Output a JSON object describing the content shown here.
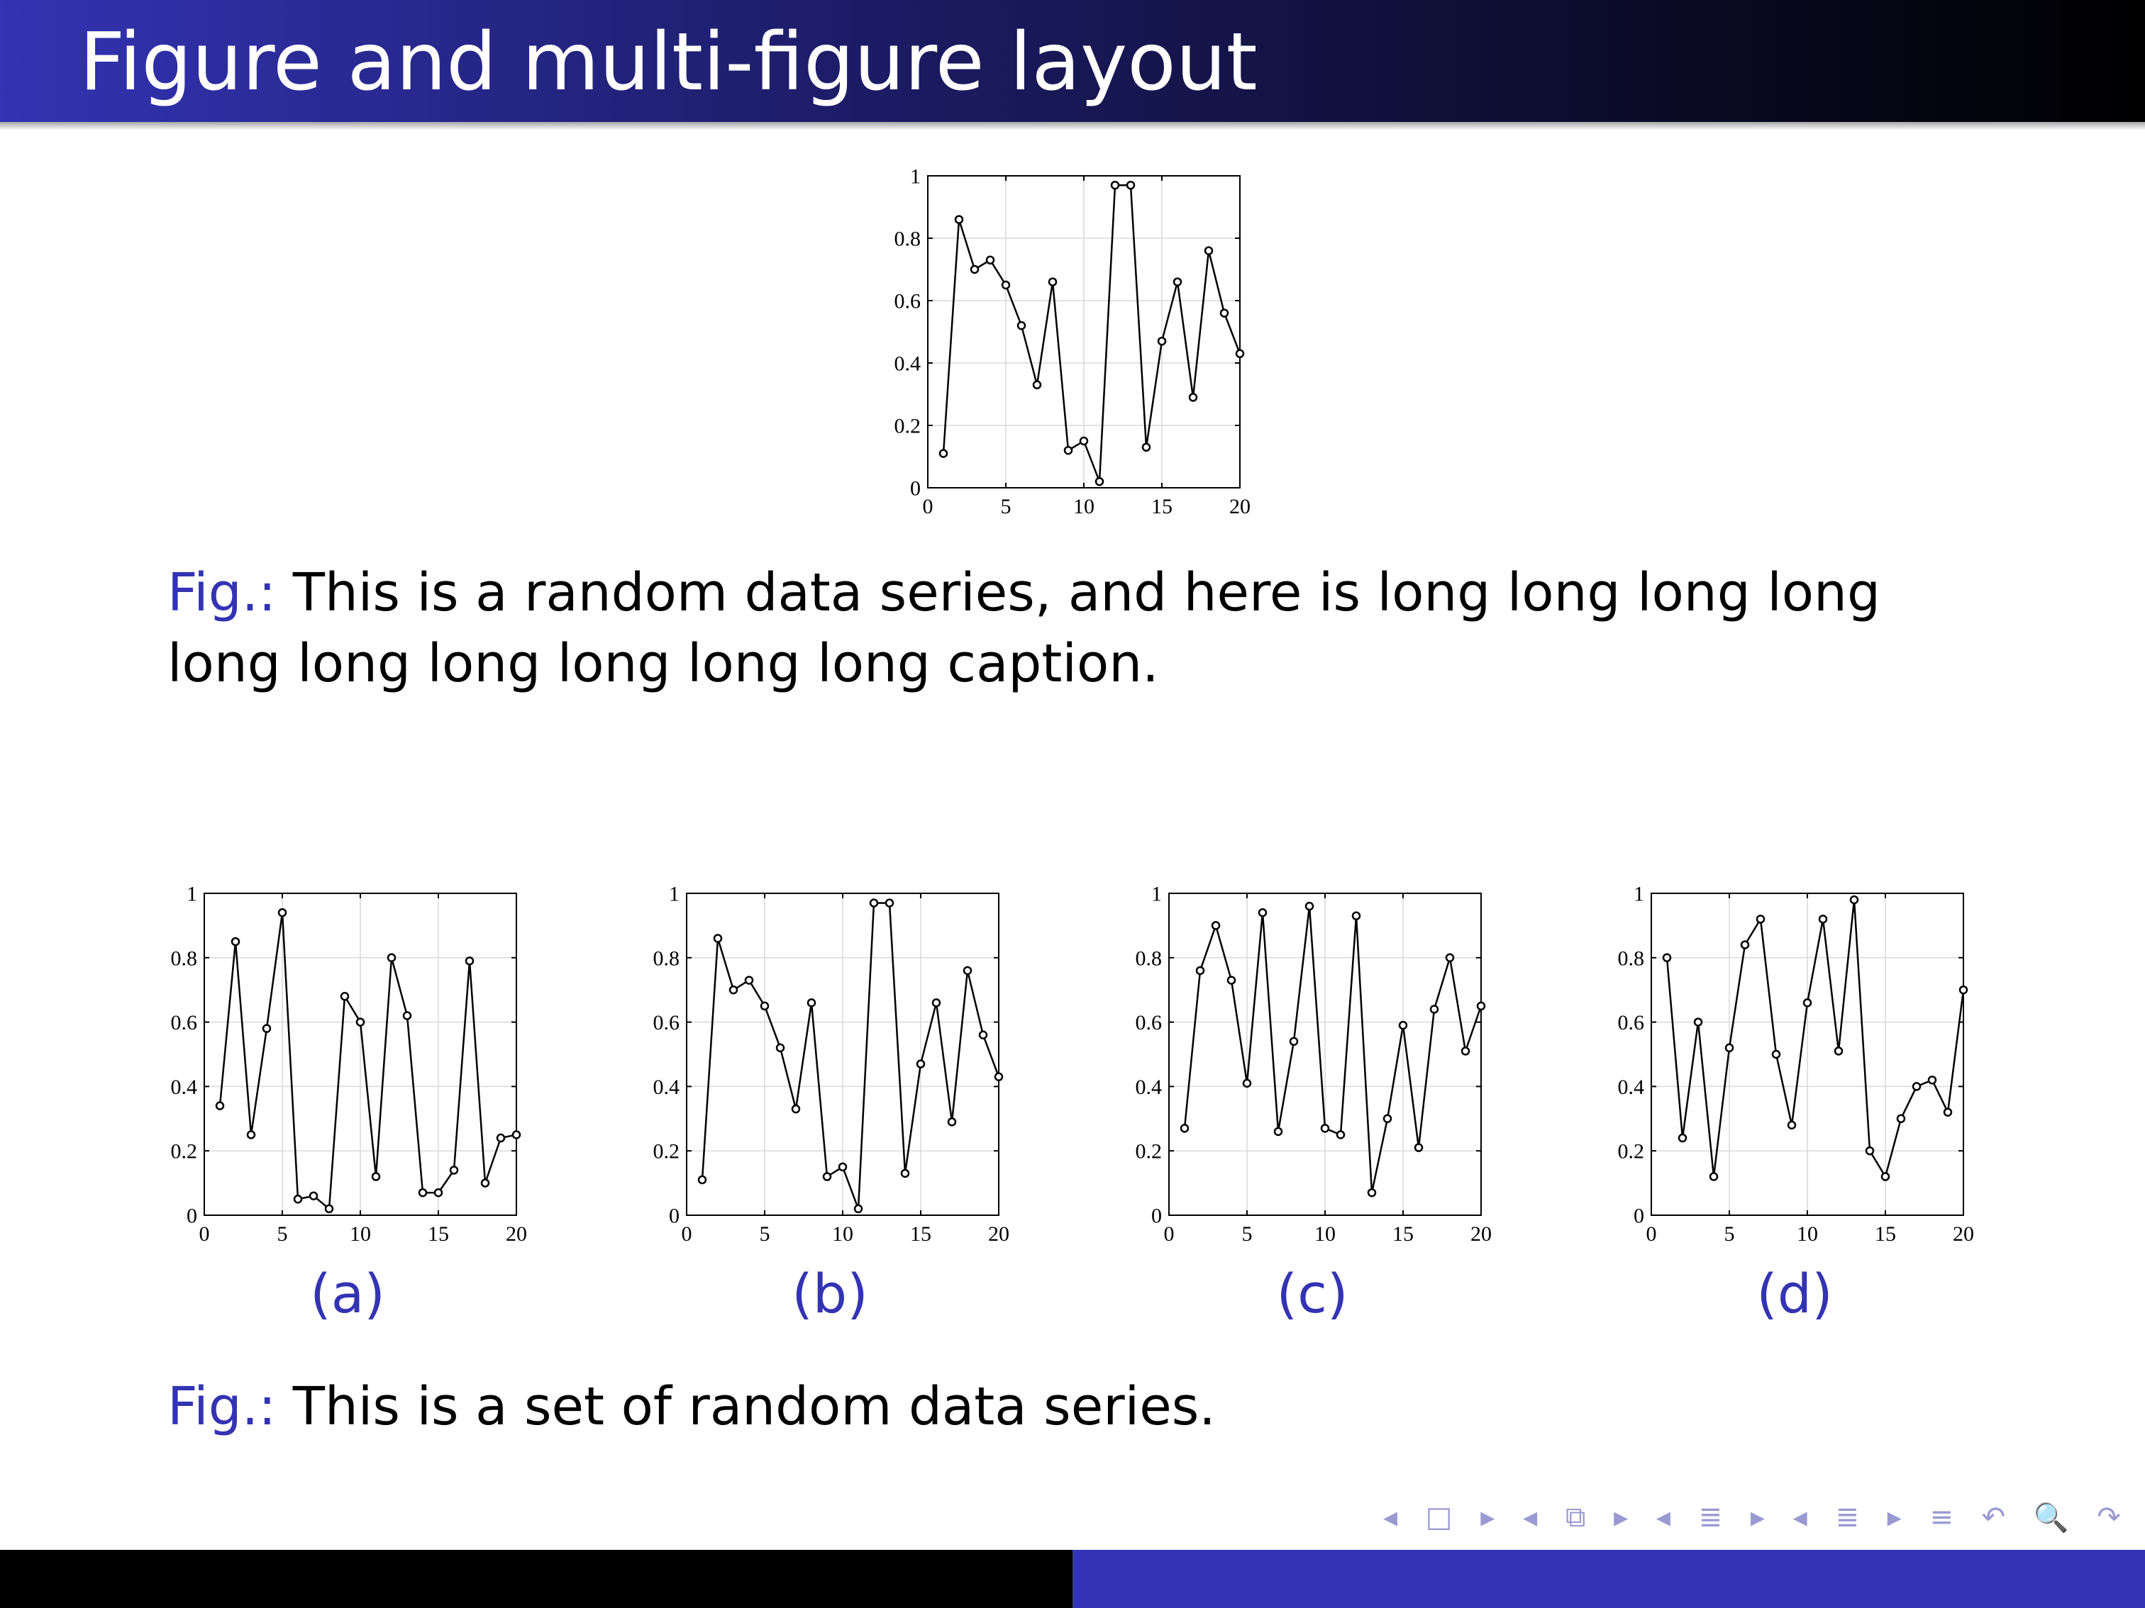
{
  "frame": {
    "title": "Figure and multi-figure layout"
  },
  "captions": [
    {
      "label": "Fig.:",
      "text": "This is a random data series, and here is long long long long long long long long long long caption."
    },
    {
      "label": "Fig.:",
      "text": "This is a set of random data series."
    }
  ],
  "subfigure_labels": [
    "(a)",
    "(b)",
    "(c)",
    "(d)"
  ],
  "navigation": {
    "icons": [
      "arrow-left-icon",
      "frame-icon",
      "arrow-right-icon",
      "arrow-left-icon",
      "subsection-icon",
      "arrow-right-icon",
      "arrow-left-icon",
      "section-icon",
      "arrow-right-icon",
      "arrow-left-icon",
      "document-icon",
      "arrow-right-icon",
      "align-icon",
      "undo-icon",
      "search-icon",
      "redo-icon"
    ],
    "glyphs": [
      "◂",
      "□",
      "▸",
      "◂",
      "⧉",
      "▸",
      "◂",
      "≣",
      "▸",
      "◂",
      "≣",
      "▸",
      "≡",
      "↶",
      "🔍",
      "↷"
    ]
  },
  "colors": {
    "accent": "#3333b3",
    "header_dark": "#000000"
  },
  "chart_data": [
    {
      "type": "line",
      "marker": "circle",
      "grid": true,
      "xlim": [
        0,
        20
      ],
      "ylim": [
        0,
        1
      ],
      "xticks": [
        "0",
        "5",
        "10",
        "15",
        "20"
      ],
      "yticks": [
        "0",
        "0.2",
        "0.4",
        "0.6",
        "0.8",
        "1"
      ],
      "x": [
        1,
        2,
        3,
        4,
        5,
        6,
        7,
        8,
        9,
        10,
        11,
        12,
        13,
        14,
        15,
        16,
        17,
        18,
        19,
        20
      ],
      "y": [
        0.11,
        0.86,
        0.7,
        0.73,
        0.65,
        0.52,
        0.33,
        0.66,
        0.12,
        0.15,
        0.02,
        0.97,
        0.97,
        0.13,
        0.47,
        0.66,
        0.29,
        0.76,
        0.56,
        0.43
      ]
    },
    {
      "type": "line",
      "marker": "circle",
      "grid": true,
      "xlim": [
        0,
        20
      ],
      "ylim": [
        0,
        1
      ],
      "xticks": [
        "0",
        "5",
        "10",
        "15",
        "20"
      ],
      "yticks": [
        "0",
        "0.2",
        "0.4",
        "0.6",
        "0.8",
        "1"
      ],
      "x": [
        1,
        2,
        3,
        4,
        5,
        6,
        7,
        8,
        9,
        10,
        11,
        12,
        13,
        14,
        15,
        16,
        17,
        18,
        19,
        20
      ],
      "y": [
        0.34,
        0.85,
        0.25,
        0.58,
        0.94,
        0.05,
        0.06,
        0.02,
        0.68,
        0.6,
        0.12,
        0.8,
        0.62,
        0.07,
        0.07,
        0.14,
        0.79,
        0.1,
        0.24,
        0.25
      ]
    },
    {
      "type": "line",
      "marker": "circle",
      "grid": true,
      "xlim": [
        0,
        20
      ],
      "ylim": [
        0,
        1
      ],
      "xticks": [
        "0",
        "5",
        "10",
        "15",
        "20"
      ],
      "yticks": [
        "0",
        "0.2",
        "0.4",
        "0.6",
        "0.8",
        "1"
      ],
      "x": [
        1,
        2,
        3,
        4,
        5,
        6,
        7,
        8,
        9,
        10,
        11,
        12,
        13,
        14,
        15,
        16,
        17,
        18,
        19,
        20
      ],
      "y": [
        0.11,
        0.86,
        0.7,
        0.73,
        0.65,
        0.52,
        0.33,
        0.66,
        0.12,
        0.15,
        0.02,
        0.97,
        0.97,
        0.13,
        0.47,
        0.66,
        0.29,
        0.76,
        0.56,
        0.43
      ]
    },
    {
      "type": "line",
      "marker": "circle",
      "grid": true,
      "xlim": [
        0,
        20
      ],
      "ylim": [
        0,
        1
      ],
      "xticks": [
        "0",
        "5",
        "10",
        "15",
        "20"
      ],
      "yticks": [
        "0",
        "0.2",
        "0.4",
        "0.6",
        "0.8",
        "1"
      ],
      "x": [
        1,
        2,
        3,
        4,
        5,
        6,
        7,
        8,
        9,
        10,
        11,
        12,
        13,
        14,
        15,
        16,
        17,
        18,
        19,
        20
      ],
      "y": [
        0.27,
        0.76,
        0.9,
        0.73,
        0.41,
        0.94,
        0.26,
        0.54,
        0.96,
        0.27,
        0.25,
        0.93,
        0.07,
        0.3,
        0.59,
        0.21,
        0.64,
        0.8,
        0.51,
        0.65
      ]
    },
    {
      "type": "line",
      "marker": "circle",
      "grid": true,
      "xlim": [
        0,
        20
      ],
      "ylim": [
        0,
        1
      ],
      "xticks": [
        "0",
        "5",
        "10",
        "15",
        "20"
      ],
      "yticks": [
        "0",
        "0.2",
        "0.4",
        "0.6",
        "0.8",
        "1"
      ],
      "x": [
        1,
        2,
        3,
        4,
        5,
        6,
        7,
        8,
        9,
        10,
        11,
        12,
        13,
        14,
        15,
        16,
        17,
        18,
        19,
        20
      ],
      "y": [
        0.8,
        0.24,
        0.6,
        0.12,
        0.52,
        0.84,
        0.92,
        0.5,
        0.28,
        0.66,
        0.92,
        0.51,
        0.98,
        0.2,
        0.12,
        0.3,
        0.4,
        0.42,
        0.32,
        0.7
      ]
    }
  ]
}
